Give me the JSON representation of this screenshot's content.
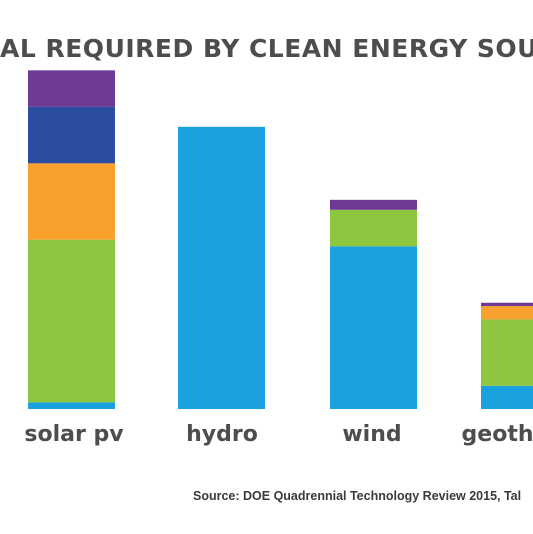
{
  "chart_data": {
    "type": "bar",
    "stacked": true,
    "title": "AL REQUIRED BY CLEAN ENERGY SOU",
    "categories": [
      "solar pv",
      "hydro",
      "wind",
      "geothe"
    ],
    "ylim": [
      0,
      100
    ],
    "series": [
      {
        "color": "#1ba1dd",
        "values": [
          2,
          85,
          49,
          7
        ]
      },
      {
        "color": "#8dc63f",
        "values": [
          49,
          0,
          11,
          20
        ]
      },
      {
        "color": "#f9a12d",
        "values": [
          23,
          0,
          0,
          4
        ]
      },
      {
        "color": "#2b4da0",
        "values": [
          17,
          0,
          0,
          0
        ]
      },
      {
        "color": "#6f3996",
        "values": [
          11,
          0,
          3,
          1
        ]
      }
    ],
    "grid": false,
    "legend": "none"
  },
  "source": "Source: DOE Quadrennial Technology Review 2015, Tal"
}
